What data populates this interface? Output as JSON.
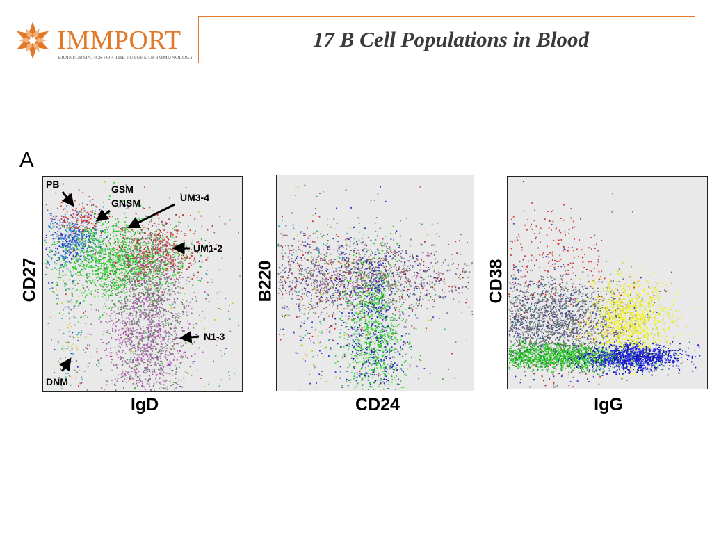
{
  "header": {
    "logo": {
      "icon": "immport-star-logo",
      "wordmark": "IMMPORT",
      "tagline": "BIOINFORMATICS FOR THE FUTURE OF IMMUNOLOGY",
      "brand_color": "#e07a2a"
    },
    "title": "17 B Cell Populations in Blood",
    "title_border_color": "#e07a2a"
  },
  "panel_letter": "A",
  "chart_data": [
    {
      "type": "scatter",
      "xlabel": "IgD",
      "ylabel": "CD27",
      "annotations": [
        "PB",
        "GSM",
        "GNSM",
        "UM3-4",
        "UM1-2",
        "N1-3",
        "DNM"
      ]
    },
    {
      "type": "scatter",
      "xlabel": "CD24",
      "ylabel": "B220",
      "annotations": []
    },
    {
      "type": "scatter",
      "xlabel": "IgG",
      "ylabel": "CD38",
      "annotations": []
    }
  ]
}
